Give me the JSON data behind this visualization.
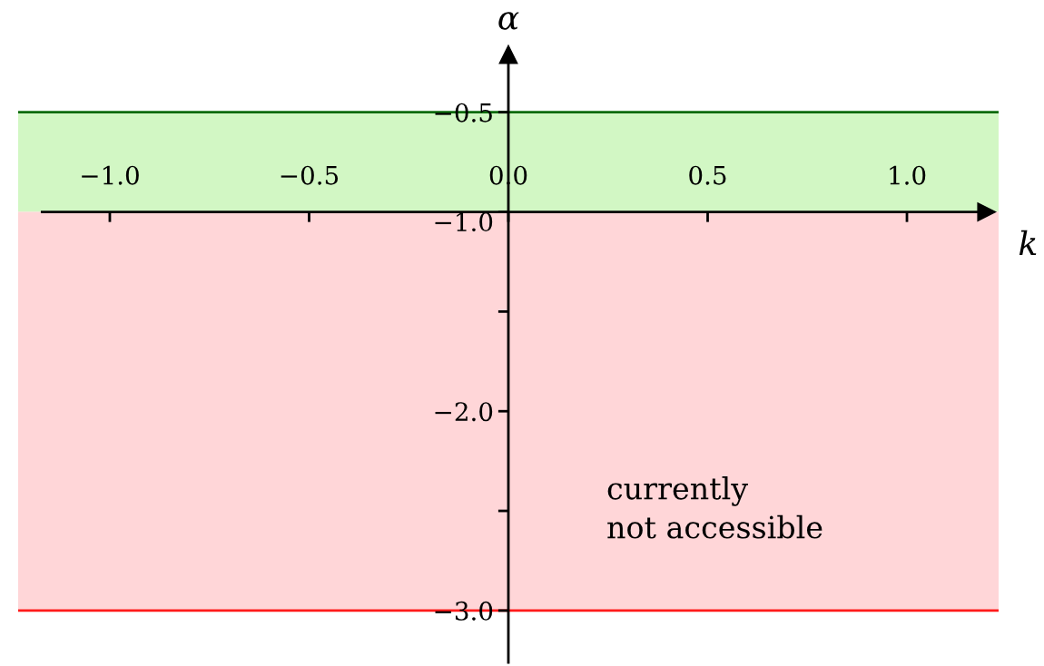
{
  "chart_data": {
    "type": "line",
    "xlabel": "k",
    "ylabel": "α",
    "x": [
      -1.23,
      1.23
    ],
    "series": [
      {
        "color": "#0b6b0b",
        "values": [
          -0.5,
          -0.5
        ]
      },
      {
        "color": "#ff1a1a",
        "values": [
          -3.0,
          -3.0
        ]
      }
    ],
    "xlim": [
      -1.23,
      1.23
    ],
    "ylim": [
      -3.26,
      -0.21
    ],
    "xticks": [
      {
        "value": -1.0,
        "label": "−1.0"
      },
      {
        "value": -0.5,
        "label": "−0.5"
      },
      {
        "value": 0.0,
        "label": "0.0"
      },
      {
        "value": 0.5,
        "label": "0.5"
      },
      {
        "value": 1.0,
        "label": "1.0"
      }
    ],
    "yticks": [
      {
        "value": -0.5,
        "label": "−0.5"
      },
      {
        "value": -1.0,
        "label": "−1.0"
      },
      {
        "value": -1.5,
        "label": null
      },
      {
        "value": -2.0,
        "label": "−2.0"
      },
      {
        "value": -2.5,
        "label": null
      },
      {
        "value": -3.0,
        "label": "−3.0"
      }
    ],
    "bands": [
      {
        "axis": "y",
        "from": -1.0,
        "to": -0.5,
        "color": "#d2f7c4"
      },
      {
        "axis": "y",
        "from": -3.0,
        "to": -1.0,
        "color": "#ffd6d8"
      }
    ],
    "annotations": [
      "currently\nnot accessible"
    ],
    "legend": false
  }
}
